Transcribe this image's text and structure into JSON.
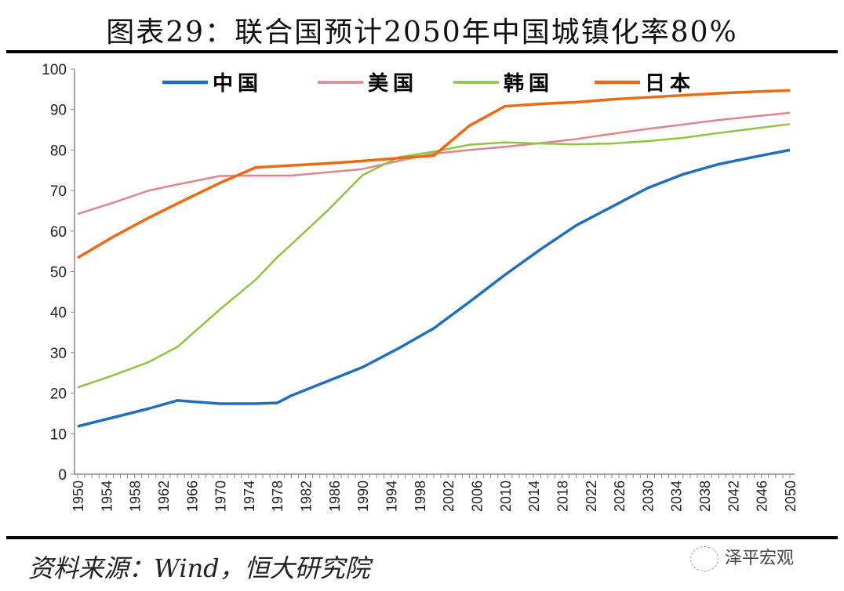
{
  "title": "图表29：联合国预计2050年中国城镇化率80%",
  "footer": "资料来源：Wind，恒大研究院",
  "brand": "泽平宏观",
  "chart_data": {
    "type": "line",
    "title": "图表29：联合国预计2050年中国城镇化率80%",
    "xlabel": "",
    "ylabel": "",
    "ylim": [
      0,
      100
    ],
    "yticks": [
      0,
      10,
      20,
      30,
      40,
      50,
      60,
      70,
      80,
      90,
      100
    ],
    "xlim": [
      1950,
      2050
    ],
    "xticks": [
      1950,
      1954,
      1958,
      1962,
      1966,
      1970,
      1974,
      1978,
      1982,
      1986,
      1990,
      1994,
      1998,
      2002,
      2006,
      2010,
      2014,
      2018,
      2022,
      2026,
      2030,
      2034,
      2038,
      2042,
      2046,
      2050
    ],
    "legend_position": "top",
    "x": [
      1950,
      1955,
      1960,
      1964,
      1970,
      1975,
      1978,
      1980,
      1985,
      1990,
      1995,
      2000,
      2005,
      2010,
      2015,
      2020,
      2025,
      2030,
      2035,
      2040,
      2045,
      2050
    ],
    "series": [
      {
        "name": "中国",
        "color": "#1f6fbf",
        "width": 3.5,
        "values": [
          11.8,
          14.0,
          16.2,
          18.2,
          17.4,
          17.4,
          17.6,
          19.4,
          22.9,
          26.4,
          31.0,
          36.0,
          42.5,
          49.2,
          55.5,
          61.4,
          66.0,
          70.6,
          74.0,
          76.5,
          78.3,
          80.0
        ]
      },
      {
        "name": "美国",
        "color": "#e0848f",
        "width": 2.5,
        "values": [
          64.2,
          67.0,
          70.0,
          71.5,
          73.6,
          73.7,
          73.7,
          73.7,
          74.5,
          75.3,
          77.3,
          79.1,
          80.0,
          80.8,
          81.7,
          82.7,
          84.0,
          85.2,
          86.3,
          87.4,
          88.3,
          89.2
        ]
      },
      {
        "name": "韩国",
        "color": "#8cc63f",
        "width": 2.5,
        "values": [
          21.4,
          24.4,
          27.7,
          31.4,
          40.7,
          48.0,
          53.5,
          56.7,
          64.9,
          73.8,
          78.2,
          79.6,
          81.3,
          81.9,
          81.6,
          81.4,
          81.6,
          82.2,
          83.0,
          84.2,
          85.3,
          86.4
        ]
      },
      {
        "name": "日本",
        "color": "#ec6a12",
        "width": 3.5,
        "values": [
          53.4,
          58.6,
          63.3,
          66.8,
          71.9,
          75.7,
          76.0,
          76.2,
          76.7,
          77.3,
          78.0,
          78.6,
          86.0,
          90.8,
          91.4,
          91.8,
          92.5,
          93.0,
          93.5,
          94.0,
          94.4,
          94.7
        ]
      }
    ]
  }
}
